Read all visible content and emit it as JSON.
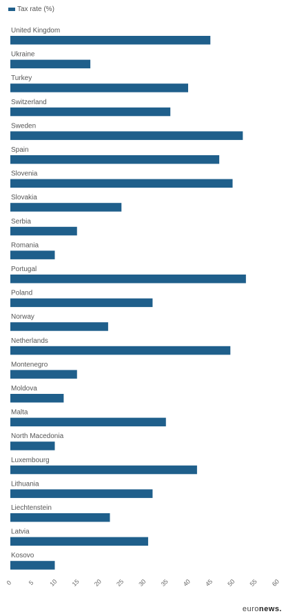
{
  "legend": {
    "label": "Tax rate (%)"
  },
  "brand": {
    "prefix": "euro",
    "suffix": "news."
  },
  "colors": {
    "bar": "#1f5f8b",
    "label": "#555555",
    "tick": "#666666"
  },
  "chart_data": {
    "type": "bar",
    "orientation": "horizontal",
    "categories": [
      "United Kingdom",
      "Ukraine",
      "Turkey",
      "Switzerland",
      "Sweden",
      "Spain",
      "Slovenia",
      "Slovakia",
      "Serbia",
      "Romania",
      "Portugal",
      "Poland",
      "Norway",
      "Netherlands",
      "Montenegro",
      "Moldova",
      "Malta",
      "North Macedonia",
      "Luxembourg",
      "Lithuania",
      "Liechtenstein",
      "Latvia",
      "Kosovo"
    ],
    "series": [
      {
        "name": "Tax rate (%)",
        "values": [
          45,
          18,
          40,
          36,
          52.3,
          47,
          50,
          25,
          15,
          10,
          53,
          32,
          22,
          49.5,
          15,
          12,
          35,
          10,
          42,
          32,
          22.4,
          31,
          10
        ]
      }
    ],
    "xlim": [
      0,
      60
    ],
    "xticks": [
      0,
      5,
      10,
      15,
      20,
      25,
      30,
      35,
      40,
      45,
      50,
      55,
      60
    ],
    "grid": false,
    "legend_position": "top-left"
  }
}
